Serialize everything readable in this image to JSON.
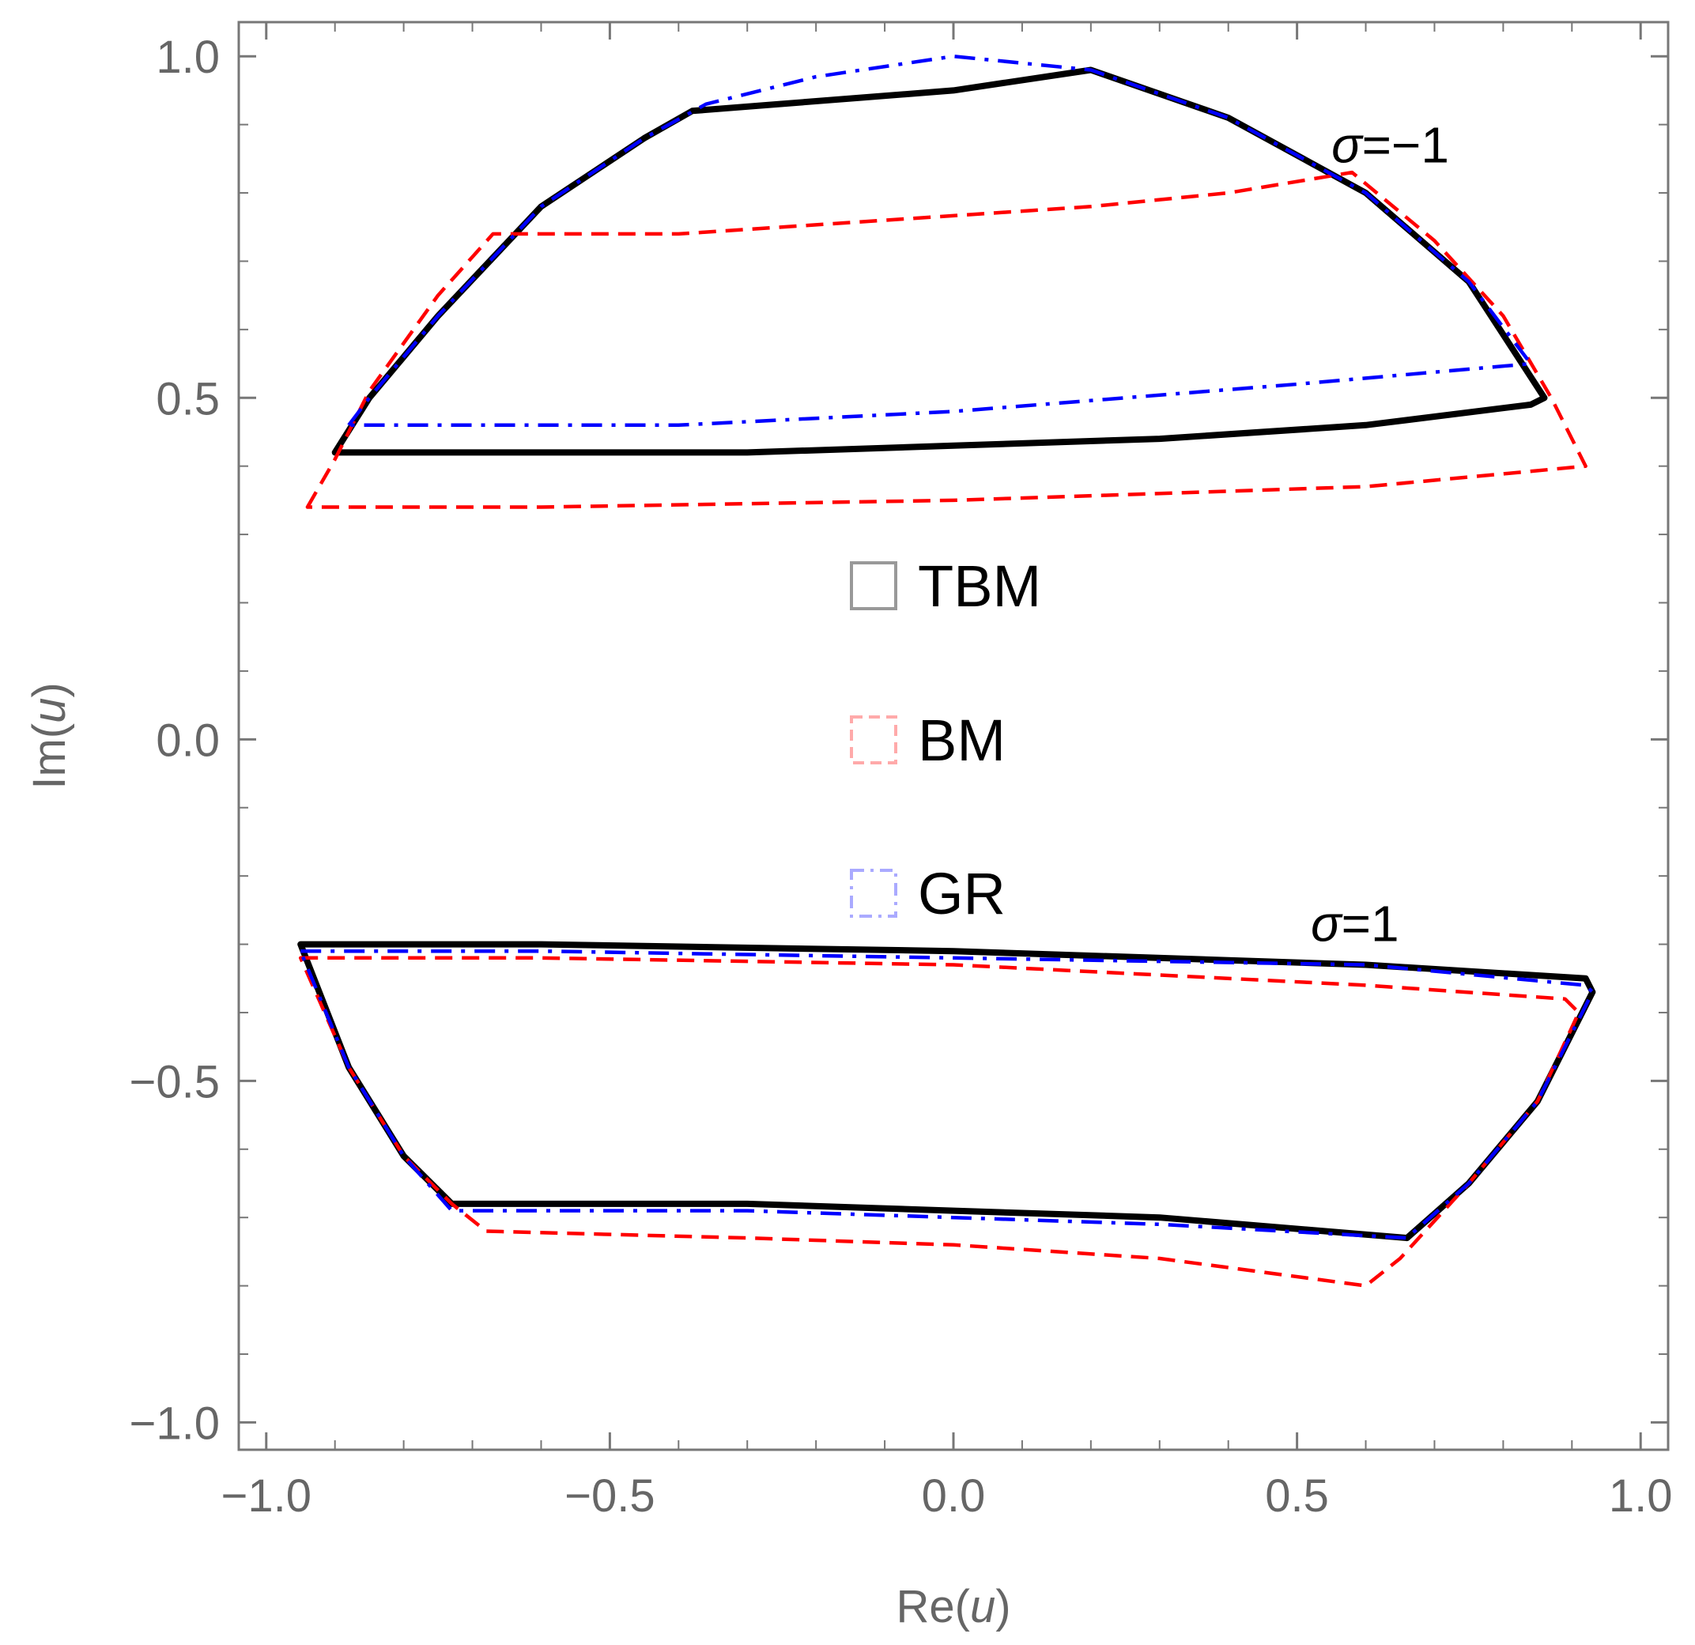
{
  "chart_data": {
    "type": "line",
    "title": "",
    "xlabel": "Re(",
    "xlabel_var": "u",
    "xlabel_close": ")",
    "ylabel": "Im(",
    "ylabel_var": "u",
    "ylabel_close": ")",
    "xlim": [
      -1.04,
      1.04
    ],
    "ylim": [
      -1.04,
      1.05
    ],
    "grid": false,
    "legend_placement": "center",
    "x_ticks": [
      {
        "value": -1.0,
        "label": "−1.0"
      },
      {
        "value": -0.5,
        "label": "−0.5"
      },
      {
        "value": 0.0,
        "label": "0.0"
      },
      {
        "value": 0.5,
        "label": "0.5"
      },
      {
        "value": 1.0,
        "label": "1.0"
      }
    ],
    "y_ticks": [
      {
        "value": 1.0,
        "label": "1.0"
      },
      {
        "value": 0.5,
        "label": "0.5"
      },
      {
        "value": 0.0,
        "label": "0.0"
      },
      {
        "value": -0.5,
        "label": "−0.5"
      },
      {
        "value": -1.0,
        "label": "−1.0"
      }
    ],
    "annotations": [
      {
        "sym": "σ",
        "text": "=−1",
        "x": 0.55,
        "y": 0.87
      },
      {
        "sym": "σ",
        "text": "=1",
        "x": 0.52,
        "y": -0.27
      }
    ],
    "series": [
      {
        "name": "TBM",
        "color": "#000000",
        "dash": "solid",
        "regions": [
          {
            "sigma": -1,
            "x": [
              -0.9,
              -0.85,
              -0.75,
              -0.6,
              -0.45,
              -0.38,
              0.0,
              0.2,
              0.4,
              0.6,
              0.75,
              0.86,
              0.84,
              0.6,
              0.3,
              0.0,
              -0.3,
              -0.6,
              -0.9
            ],
            "y": [
              0.42,
              0.5,
              0.62,
              0.78,
              0.88,
              0.92,
              0.95,
              0.98,
              0.91,
              0.8,
              0.67,
              0.5,
              0.49,
              0.46,
              0.44,
              0.43,
              0.42,
              0.42,
              0.42
            ]
          },
          {
            "sigma": 1,
            "x": [
              -0.95,
              -0.6,
              0.0,
              0.6,
              0.92,
              0.93,
              0.85,
              0.75,
              0.66,
              0.3,
              0.0,
              -0.3,
              -0.73,
              -0.8,
              -0.88,
              -0.95
            ],
            "y": [
              -0.3,
              -0.3,
              -0.31,
              -0.33,
              -0.35,
              -0.37,
              -0.53,
              -0.65,
              -0.73,
              -0.7,
              -0.69,
              -0.68,
              -0.68,
              -0.61,
              -0.48,
              -0.3
            ]
          }
        ]
      },
      {
        "name": "BM",
        "color": "#ff0000",
        "dash": "dashed",
        "regions": [
          {
            "sigma": -1,
            "x": [
              -0.94,
              -0.9,
              -0.85,
              -0.75,
              -0.67,
              -0.4,
              -0.1,
              0.2,
              0.4,
              0.58,
              0.7,
              0.8,
              0.87,
              0.92,
              0.6,
              0.0,
              -0.6,
              -0.94
            ],
            "y": [
              0.34,
              0.41,
              0.51,
              0.65,
              0.74,
              0.74,
              0.76,
              0.78,
              0.8,
              0.83,
              0.73,
              0.62,
              0.5,
              0.4,
              0.37,
              0.35,
              0.34,
              0.34
            ]
          },
          {
            "sigma": 1,
            "x": [
              -0.95,
              -0.6,
              0.0,
              0.6,
              0.89,
              0.91,
              0.85,
              0.75,
              0.65,
              0.6,
              0.3,
              0.0,
              -0.3,
              -0.68,
              -0.73,
              -0.8,
              -0.88,
              -0.95
            ],
            "y": [
              -0.32,
              -0.32,
              -0.33,
              -0.36,
              -0.38,
              -0.4,
              -0.53,
              -0.65,
              -0.76,
              -0.8,
              -0.76,
              -0.74,
              -0.73,
              -0.72,
              -0.68,
              -0.61,
              -0.48,
              -0.32
            ]
          }
        ]
      },
      {
        "name": "GR",
        "color": "#0000ff",
        "dash": "dashdot",
        "regions": [
          {
            "sigma": -1,
            "x": [
              -0.88,
              -0.85,
              -0.75,
              -0.6,
              -0.45,
              -0.36,
              -0.2,
              0.0,
              0.2,
              0.4,
              0.6,
              0.75,
              0.84,
              0.5,
              0.0,
              -0.4,
              -0.7,
              -0.87
            ],
            "y": [
              0.46,
              0.5,
              0.62,
              0.78,
              0.88,
              0.93,
              0.97,
              1.0,
              0.98,
              0.91,
              0.8,
              0.67,
              0.55,
              0.52,
              0.48,
              0.46,
              0.46,
              0.46
            ]
          },
          {
            "sigma": 1,
            "x": [
              -0.95,
              -0.6,
              0.0,
              0.6,
              0.92,
              0.93,
              0.85,
              0.75,
              0.66,
              0.3,
              0.0,
              -0.3,
              -0.73,
              -0.8,
              -0.88,
              -0.95
            ],
            "y": [
              -0.31,
              -0.31,
              -0.32,
              -0.33,
              -0.36,
              -0.37,
              -0.53,
              -0.65,
              -0.73,
              -0.71,
              -0.7,
              -0.69,
              -0.69,
              -0.61,
              -0.48,
              -0.31
            ]
          }
        ]
      }
    ],
    "legend": [
      {
        "label": "TBM",
        "color": "#999999",
        "dash": "solid"
      },
      {
        "label": "BM",
        "color": "#ffaaaa",
        "dash": "dashed"
      },
      {
        "label": "GR",
        "color": "#aaaaff",
        "dash": "dashdot"
      }
    ]
  }
}
